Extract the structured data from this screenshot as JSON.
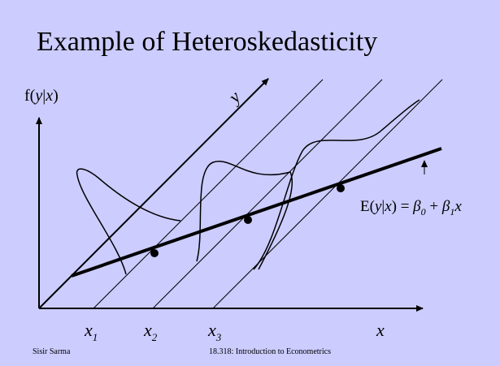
{
  "title": "Example of Heteroskedasticity",
  "y_axis_label": {
    "parts": [
      "f(",
      "y",
      "|",
      "x",
      ")"
    ]
  },
  "depth_axis_label": "y",
  "x_axis_label": "x",
  "x_ticks": [
    {
      "base": "x",
      "sub": "1"
    },
    {
      "base": "x",
      "sub": "2"
    },
    {
      "base": "x",
      "sub": "3"
    }
  ],
  "regression_label": {
    "parts": [
      "E(",
      "y",
      "|",
      "x",
      ") = ",
      "β",
      "0",
      " + ",
      "β",
      "1",
      "x"
    ]
  },
  "footer": {
    "author": "Sisir Sarma",
    "course": "18.318: Introduction to Econometrics"
  }
}
